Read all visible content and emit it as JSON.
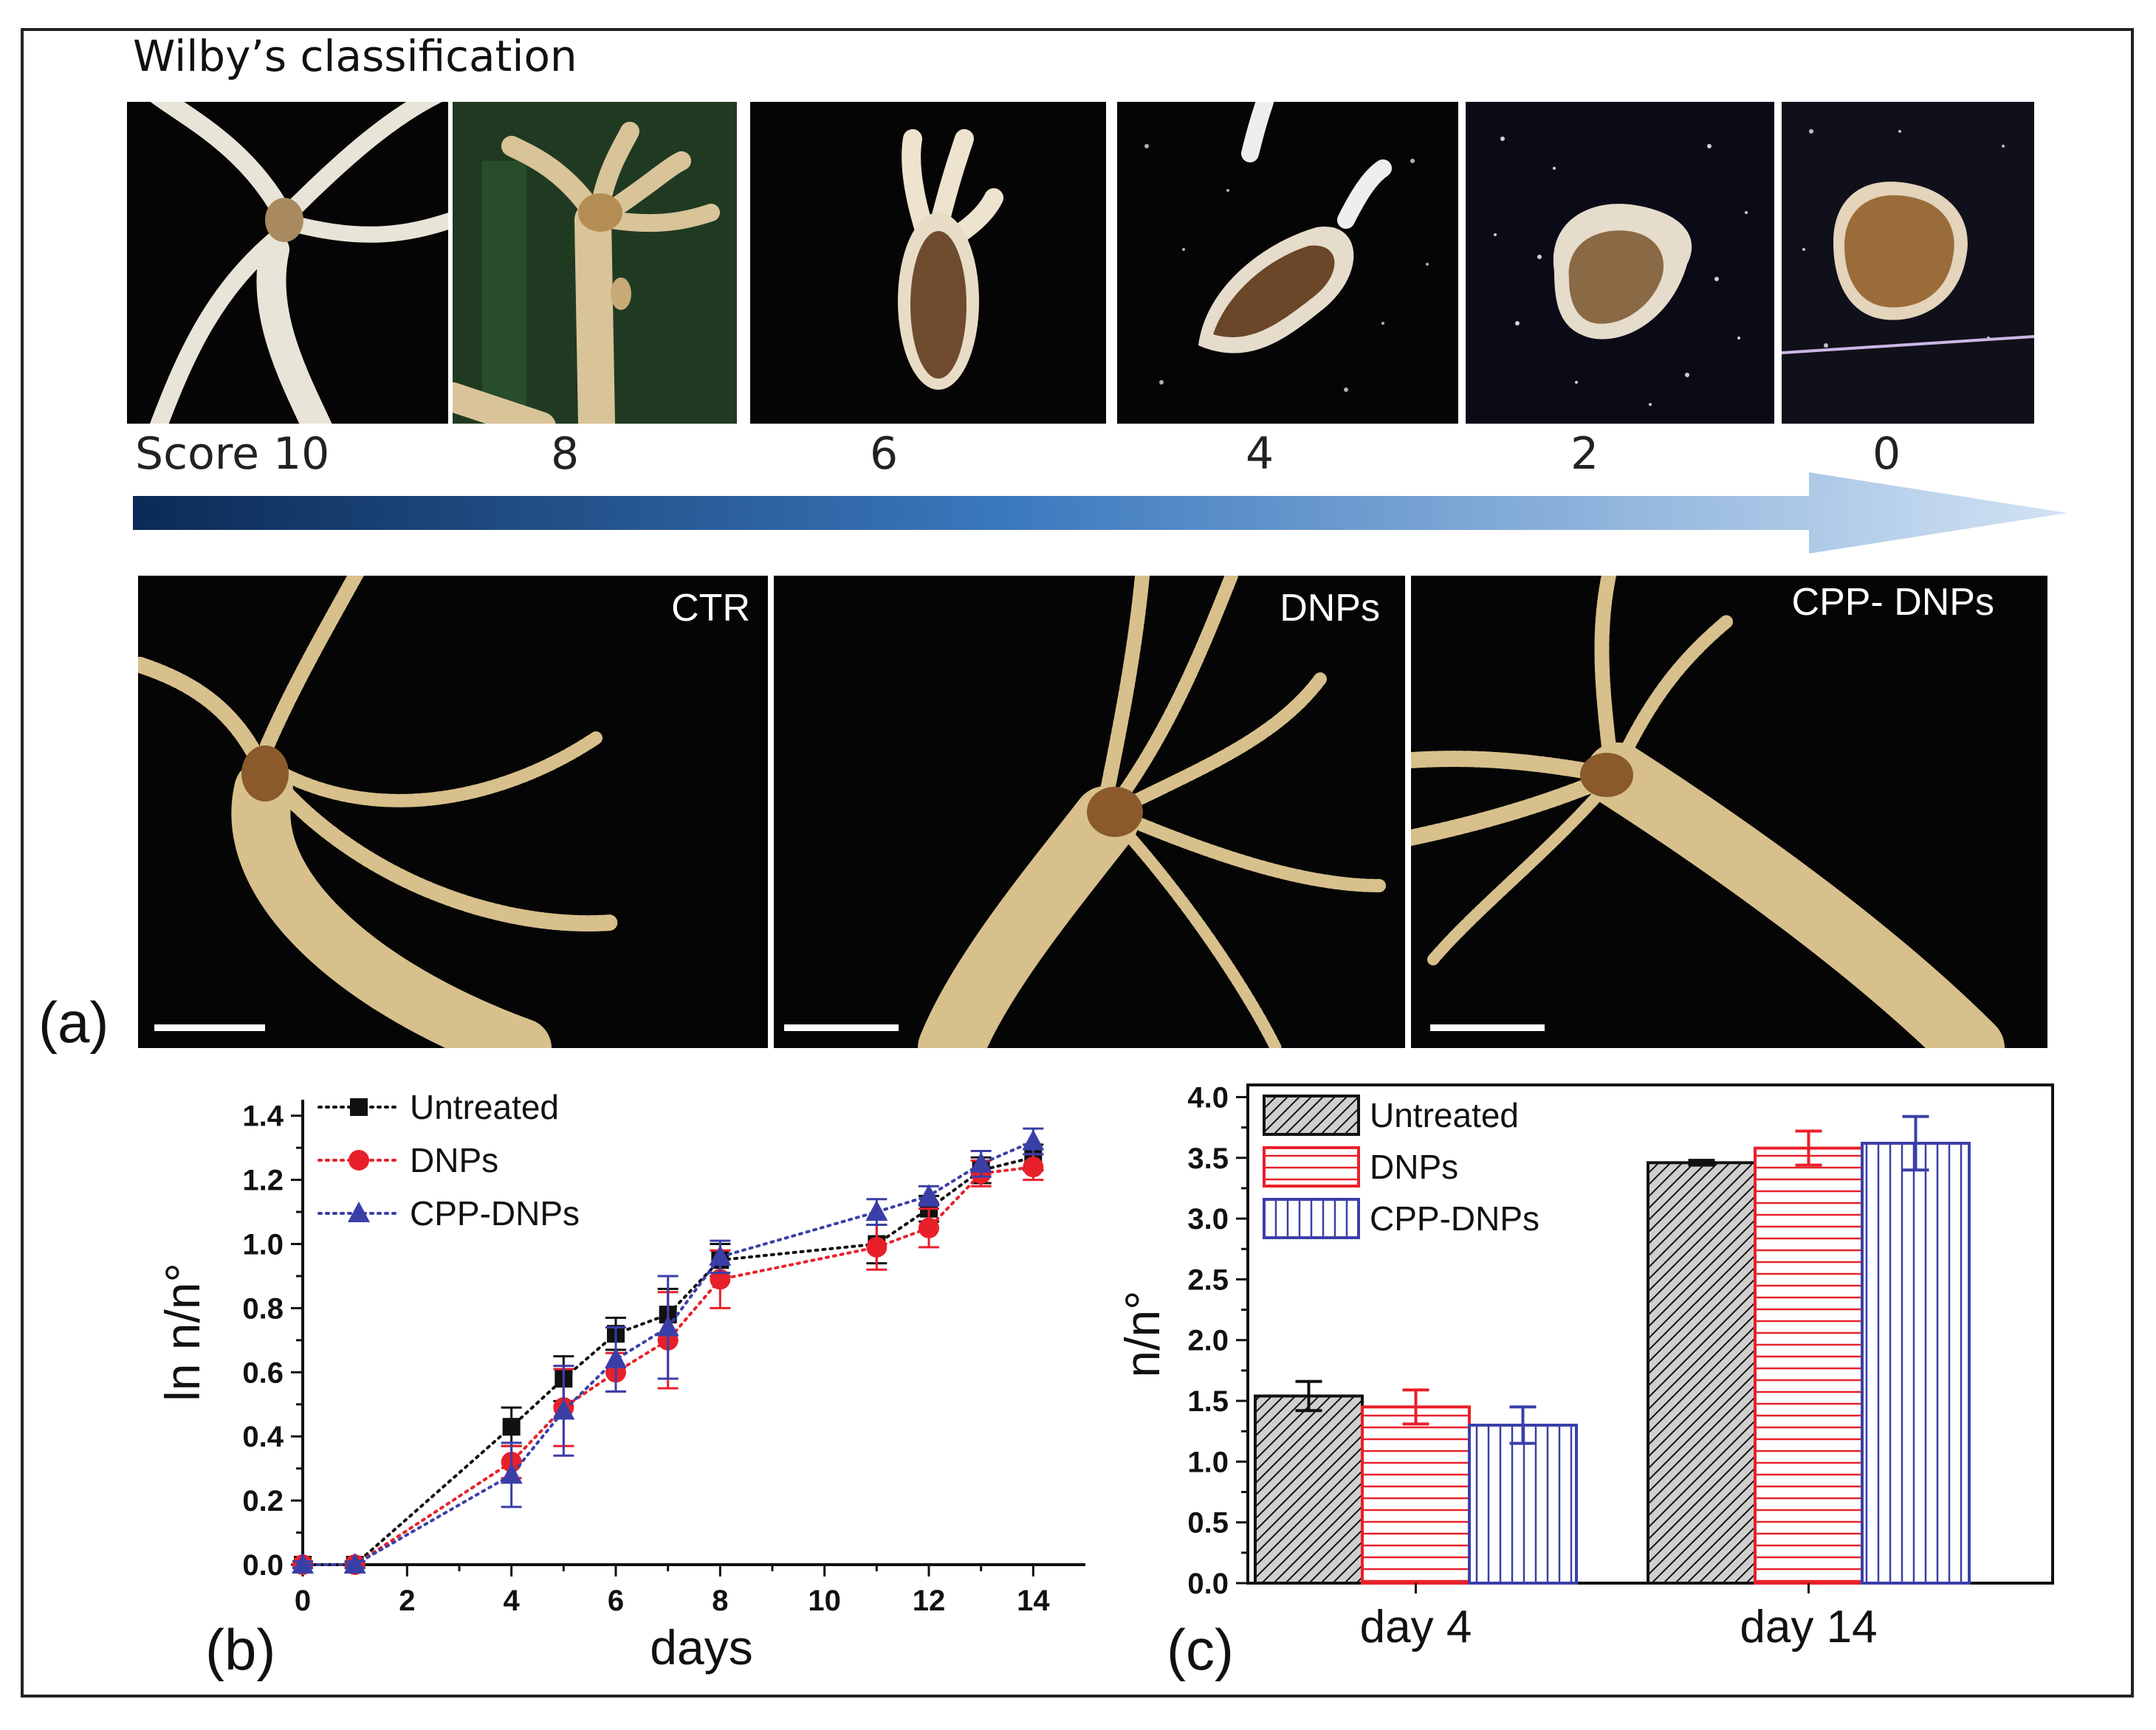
{
  "figure": {
    "wilby_title": "Wilby’s classification",
    "score_prefix": "Score",
    "scores": [
      "10",
      "8",
      "6",
      "4",
      "2",
      "0"
    ],
    "treatments": [
      "CTR",
      "DNPs",
      "CPP- DNPs"
    ],
    "panel_a_letter": "(a)",
    "panel_b_letter": "(b)",
    "panel_c_letter": "(c)"
  },
  "colors": {
    "untreated": "#111111",
    "dnps": "#e8202a",
    "cpp_dnps": "#3a3fa8",
    "arrow_start": "#0b2a55",
    "arrow_end": "#c7dcf2"
  },
  "chart_data": [
    {
      "type": "line",
      "xlabel": "days",
      "ylabel": "ln n/n°",
      "xlim": [
        0,
        15
      ],
      "ylim": [
        0,
        1.45
      ],
      "xticks": [
        "0",
        "2",
        "4",
        "6",
        "8",
        "10",
        "12",
        "14"
      ],
      "yticks": [
        "0.0",
        "0.2",
        "0.4",
        "0.6",
        "0.8",
        "1.0",
        "1.2",
        "1.4"
      ],
      "legend_position": "top-left",
      "x": [
        0,
        1,
        4,
        5,
        6,
        7,
        8,
        11,
        12,
        13,
        14
      ],
      "series": [
        {
          "name": "Untreated",
          "marker": "square",
          "values": [
            0,
            0,
            0.43,
            0.58,
            0.72,
            0.78,
            0.95,
            1.0,
            1.11,
            1.23,
            1.27
          ],
          "errors": [
            0.01,
            0.01,
            0.06,
            0.07,
            0.05,
            0.08,
            0.05,
            0.06,
            0.04,
            0.04,
            0.04
          ]
        },
        {
          "name": "DNPs",
          "marker": "circle",
          "values": [
            0,
            0,
            0.32,
            0.49,
            0.6,
            0.7,
            0.89,
            0.99,
            1.05,
            1.22,
            1.24
          ],
          "errors": [
            0.01,
            0.01,
            0.05,
            0.12,
            0.06,
            0.15,
            0.09,
            0.07,
            0.06,
            0.04,
            0.04
          ]
        },
        {
          "name": "CPP-DNPs",
          "marker": "triangle",
          "values": [
            0,
            0,
            0.28,
            0.48,
            0.64,
            0.74,
            0.96,
            1.1,
            1.15,
            1.25,
            1.32
          ],
          "errors": [
            0.01,
            0.01,
            0.1,
            0.14,
            0.1,
            0.16,
            0.05,
            0.04,
            0.03,
            0.04,
            0.04
          ]
        }
      ]
    },
    {
      "type": "bar",
      "xlabel": "",
      "ylabel": "n/n°",
      "categories": [
        "day 4",
        "day 14"
      ],
      "ylim": [
        0,
        4.1
      ],
      "yticks": [
        "0.0",
        "0.5",
        "1.0",
        "1.5",
        "2.0",
        "2.5",
        "3.0",
        "3.5",
        "4.0"
      ],
      "legend_position": "top-left",
      "series": [
        {
          "name": "Untreated",
          "pattern": "diagonal",
          "values": [
            1.54,
            3.46
          ],
          "errors": [
            0.12,
            0.02
          ]
        },
        {
          "name": "DNPs",
          "pattern": "horizontal",
          "values": [
            1.45,
            3.58
          ],
          "errors": [
            0.14,
            0.14
          ]
        },
        {
          "name": "CPP-DNPs",
          "pattern": "vertical",
          "values": [
            1.3,
            3.62
          ],
          "errors": [
            0.15,
            0.22
          ]
        }
      ]
    }
  ]
}
